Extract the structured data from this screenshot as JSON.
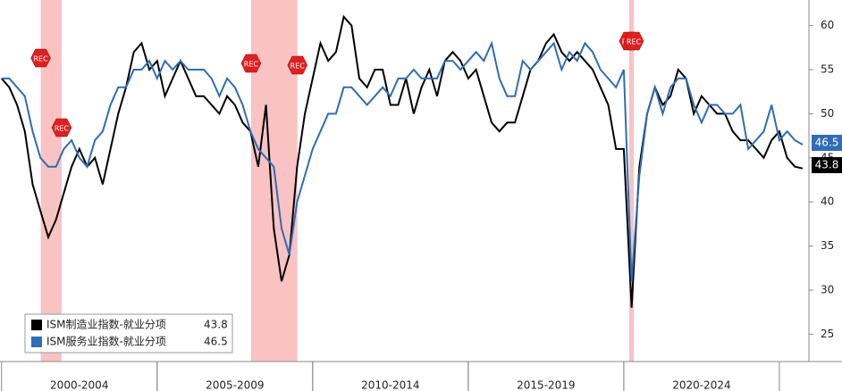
{
  "chart_data": {
    "type": "line",
    "x": [
      2000,
      2000.25,
      2000.5,
      2000.75,
      2001,
      2001.25,
      2001.5,
      2001.75,
      2002,
      2002.25,
      2002.5,
      2002.75,
      2003,
      2003.25,
      2003.5,
      2003.75,
      2004,
      2004.25,
      2004.5,
      2004.75,
      2005,
      2005.25,
      2005.5,
      2005.75,
      2006,
      2006.25,
      2006.5,
      2006.75,
      2007,
      2007.25,
      2007.5,
      2007.75,
      2008,
      2008.25,
      2008.5,
      2008.75,
      2009,
      2009.25,
      2009.5,
      2009.75,
      2010,
      2010.25,
      2010.5,
      2010.75,
      2011,
      2011.25,
      2011.5,
      2011.75,
      2012,
      2012.25,
      2012.5,
      2012.75,
      2013,
      2013.25,
      2013.5,
      2013.75,
      2014,
      2014.25,
      2014.5,
      2014.75,
      2015,
      2015.25,
      2015.5,
      2015.75,
      2016,
      2016.25,
      2016.5,
      2016.75,
      2017,
      2017.25,
      2017.5,
      2017.75,
      2018,
      2018.25,
      2018.5,
      2018.75,
      2019,
      2019.25,
      2019.5,
      2019.75,
      2020,
      2020.25,
      2020.5,
      2020.75,
      2021,
      2021.25,
      2021.5,
      2021.75,
      2022,
      2022.25,
      2022.5,
      2022.75,
      2023,
      2023.25,
      2023.5,
      2023.75,
      2024,
      2024.25,
      2024.5,
      2024.75,
      2025,
      2025.25,
      2025.5,
      2025.75
    ],
    "series": [
      {
        "name": "ISM制造业指数-就业分项",
        "color": "#000000",
        "values": [
          54,
          53,
          51,
          48,
          42,
          39,
          36,
          38,
          41,
          44,
          46,
          44,
          45,
          42,
          46,
          50,
          53,
          57,
          58,
          55,
          56,
          52,
          54,
          56,
          54,
          52,
          52,
          51,
          50,
          52,
          51,
          49,
          48,
          44,
          51,
          37,
          31,
          34,
          44,
          50,
          54,
          58,
          56,
          57,
          61,
          60,
          54,
          53,
          55,
          55,
          51,
          51,
          54,
          50,
          53,
          55,
          52,
          56,
          57,
          56,
          54,
          55,
          52,
          49,
          48,
          49,
          49,
          52,
          55,
          56,
          58,
          59,
          57,
          56,
          57,
          56,
          55,
          53,
          51,
          46,
          46,
          28,
          44,
          50,
          53,
          51,
          52,
          55,
          54,
          50,
          52,
          51,
          50,
          50,
          48,
          47,
          47,
          46,
          45,
          47,
          48,
          45,
          44,
          43.8
        ]
      },
      {
        "name": "ISM服务业指数-就业分项",
        "color": "#2f6db5",
        "values": [
          54,
          54,
          53,
          52,
          48,
          45,
          44,
          44,
          46,
          47,
          45,
          44,
          47,
          48,
          51,
          53,
          53,
          55,
          55,
          56,
          54,
          56,
          55,
          56,
          55,
          55,
          55,
          54,
          52,
          54,
          53,
          51,
          48,
          46,
          45,
          44,
          37,
          34,
          40,
          43,
          46,
          48,
          50,
          50,
          53,
          53,
          52,
          51,
          52,
          53,
          52,
          54,
          54,
          55,
          54,
          54,
          54,
          56,
          56,
          55,
          56,
          57,
          56,
          58,
          54,
          52,
          52,
          56,
          55,
          56,
          57,
          58,
          55,
          57,
          56,
          58,
          57,
          55,
          54,
          53,
          55,
          31,
          43,
          50,
          53,
          50,
          53,
          54,
          54,
          51,
          49,
          51,
          51,
          50,
          50,
          51,
          46,
          47,
          48,
          51,
          47,
          48,
          47,
          46.5
        ]
      }
    ],
    "xlim": [
      1999.95,
      2025.95
    ],
    "xticks": [
      {
        "value": 2002.5,
        "label": "2000-2004"
      },
      {
        "value": 2007.5,
        "label": "2005-2009"
      },
      {
        "value": 2012.5,
        "label": "2010-2014"
      },
      {
        "value": 2017.5,
        "label": "2015-2019"
      },
      {
        "value": 2022.5,
        "label": "2020-2024"
      }
    ],
    "ylim": [
      21.9,
      62.9
    ],
    "yticks": [
      25,
      30,
      35,
      40,
      45,
      50,
      55,
      60
    ],
    "recessions": [
      {
        "start": 2001.26,
        "end": 2001.93
      },
      {
        "start": 2008.02,
        "end": 2009.51
      },
      {
        "start": 2020.17,
        "end": 2020.32
      }
    ],
    "recession_label": "REC",
    "recession_color": "#f9c3c3",
    "legend": "bottom-left"
  }
}
